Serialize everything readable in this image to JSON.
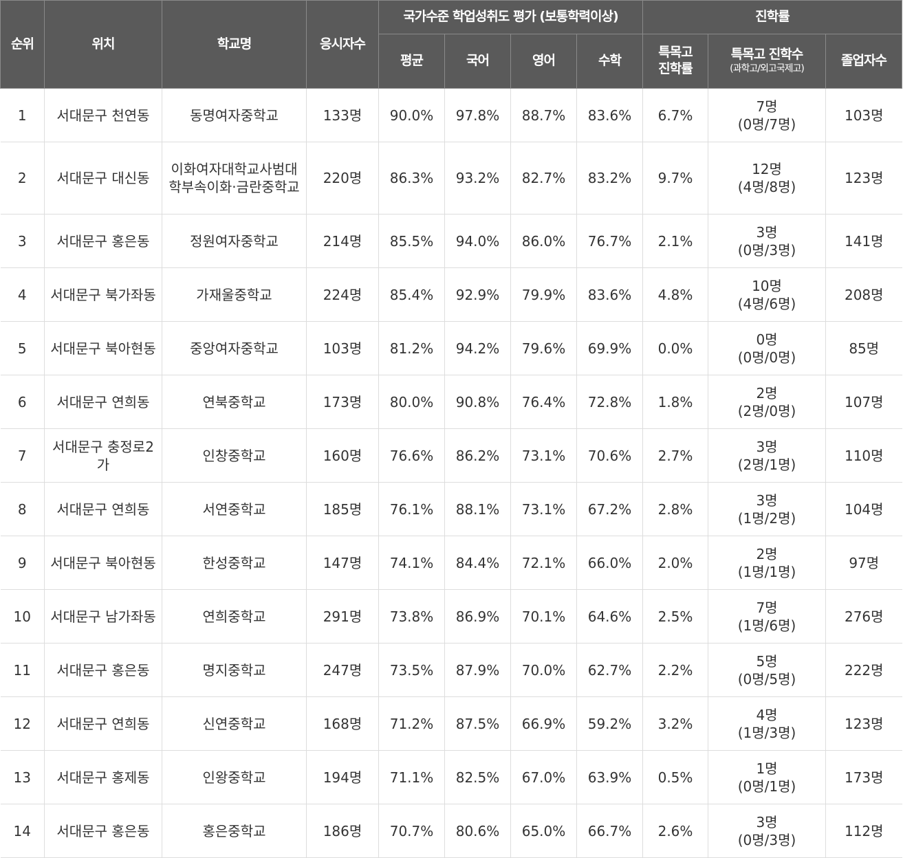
{
  "headers": {
    "rank": "순위",
    "location": "위치",
    "school": "학교명",
    "examinees": "응시자수",
    "achievement_group": "국가수준 학업성취도 평가 (보통학력이상)",
    "avg": "평균",
    "korean": "국어",
    "english": "영어",
    "math": "수학",
    "advancement_group": "진학률",
    "special_rate_l1": "특목고",
    "special_rate_l2": "진학률",
    "special_count": "특목고 진학수",
    "special_count_sub": "(과학고/외고국제고)",
    "graduates": "졸업자수"
  },
  "rows": [
    {
      "rank": "1",
      "location": "서대문구 천연동",
      "school": "동명여자중학교",
      "examinees": "133명",
      "avg": "90.0%",
      "korean": "97.8%",
      "english": "88.7%",
      "math": "83.6%",
      "special_rate": "6.7%",
      "special_count": "7명",
      "special_breakdown": "(0명/7명)",
      "graduates": "103명"
    },
    {
      "rank": "2",
      "location": "서대문구 대신동",
      "school": "이화여자대학교사범대학부속이화·금란중학교",
      "examinees": "220명",
      "avg": "86.3%",
      "korean": "93.2%",
      "english": "82.7%",
      "math": "83.2%",
      "special_rate": "9.7%",
      "special_count": "12명",
      "special_breakdown": "(4명/8명)",
      "graduates": "123명"
    },
    {
      "rank": "3",
      "location": "서대문구 홍은동",
      "school": "정원여자중학교",
      "examinees": "214명",
      "avg": "85.5%",
      "korean": "94.0%",
      "english": "86.0%",
      "math": "76.7%",
      "special_rate": "2.1%",
      "special_count": "3명",
      "special_breakdown": "(0명/3명)",
      "graduates": "141명"
    },
    {
      "rank": "4",
      "location": "서대문구 북가좌동",
      "school": "가재울중학교",
      "examinees": "224명",
      "avg": "85.4%",
      "korean": "92.9%",
      "english": "79.9%",
      "math": "83.6%",
      "special_rate": "4.8%",
      "special_count": "10명",
      "special_breakdown": "(4명/6명)",
      "graduates": "208명"
    },
    {
      "rank": "5",
      "location": "서대문구 북아현동",
      "school": "중앙여자중학교",
      "examinees": "103명",
      "avg": "81.2%",
      "korean": "94.2%",
      "english": "79.6%",
      "math": "69.9%",
      "special_rate": "0.0%",
      "special_count": "0명",
      "special_breakdown": "(0명/0명)",
      "graduates": "85명"
    },
    {
      "rank": "6",
      "location": "서대문구 연희동",
      "school": "연북중학교",
      "examinees": "173명",
      "avg": "80.0%",
      "korean": "90.8%",
      "english": "76.4%",
      "math": "72.8%",
      "special_rate": "1.8%",
      "special_count": "2명",
      "special_breakdown": "(2명/0명)",
      "graduates": "107명"
    },
    {
      "rank": "7",
      "location": "서대문구 충정로2가",
      "school": "인창중학교",
      "examinees": "160명",
      "avg": "76.6%",
      "korean": "86.2%",
      "english": "73.1%",
      "math": "70.6%",
      "special_rate": "2.7%",
      "special_count": "3명",
      "special_breakdown": "(2명/1명)",
      "graduates": "110명"
    },
    {
      "rank": "8",
      "location": "서대문구 연희동",
      "school": "서연중학교",
      "examinees": "185명",
      "avg": "76.1%",
      "korean": "88.1%",
      "english": "73.1%",
      "math": "67.2%",
      "special_rate": "2.8%",
      "special_count": "3명",
      "special_breakdown": "(1명/2명)",
      "graduates": "104명"
    },
    {
      "rank": "9",
      "location": "서대문구 북아현동",
      "school": "한성중학교",
      "examinees": "147명",
      "avg": "74.1%",
      "korean": "84.4%",
      "english": "72.1%",
      "math": "66.0%",
      "special_rate": "2.0%",
      "special_count": "2명",
      "special_breakdown": "(1명/1명)",
      "graduates": "97명"
    },
    {
      "rank": "10",
      "location": "서대문구 남가좌동",
      "school": "연희중학교",
      "examinees": "291명",
      "avg": "73.8%",
      "korean": "86.9%",
      "english": "70.1%",
      "math": "64.6%",
      "special_rate": "2.5%",
      "special_count": "7명",
      "special_breakdown": "(1명/6명)",
      "graduates": "276명"
    },
    {
      "rank": "11",
      "location": "서대문구 홍은동",
      "school": "명지중학교",
      "examinees": "247명",
      "avg": "73.5%",
      "korean": "87.9%",
      "english": "70.0%",
      "math": "62.7%",
      "special_rate": "2.2%",
      "special_count": "5명",
      "special_breakdown": "(0명/5명)",
      "graduates": "222명"
    },
    {
      "rank": "12",
      "location": "서대문구 연희동",
      "school": "신연중학교",
      "examinees": "168명",
      "avg": "71.2%",
      "korean": "87.5%",
      "english": "66.9%",
      "math": "59.2%",
      "special_rate": "3.2%",
      "special_count": "4명",
      "special_breakdown": "(1명/3명)",
      "graduates": "123명"
    },
    {
      "rank": "13",
      "location": "서대문구 홍제동",
      "school": "인왕중학교",
      "examinees": "194명",
      "avg": "71.1%",
      "korean": "82.5%",
      "english": "67.0%",
      "math": "63.9%",
      "special_rate": "0.5%",
      "special_count": "1명",
      "special_breakdown": "(0명/1명)",
      "graduates": "173명"
    },
    {
      "rank": "14",
      "location": "서대문구 홍은동",
      "school": "홍은중학교",
      "examinees": "186명",
      "avg": "70.7%",
      "korean": "80.6%",
      "english": "65.0%",
      "math": "66.7%",
      "special_rate": "2.6%",
      "special_count": "3명",
      "special_breakdown": "(0명/3명)",
      "graduates": "112명"
    }
  ]
}
